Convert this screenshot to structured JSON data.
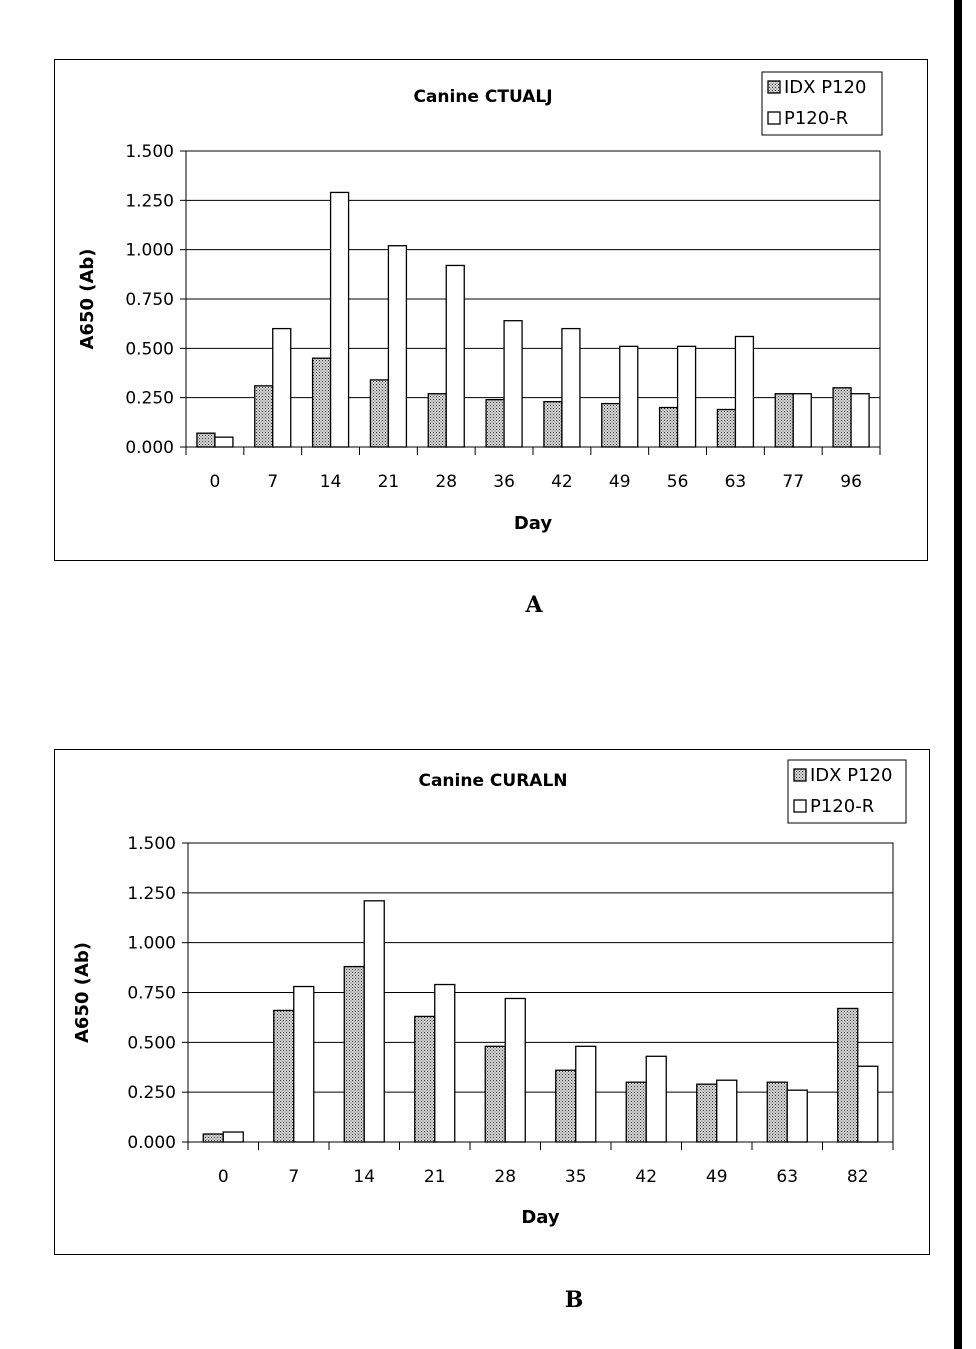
{
  "colors": {
    "stroke": "#000000",
    "filled_series": "#9a9a9a",
    "open_series": "#ffffff"
  },
  "chart_data": [
    {
      "type": "bar",
      "title": "Canine CTUALJ",
      "xlabel": "Day",
      "ylabel": "A650 (Ab)",
      "ylim": [
        0,
        1.5
      ],
      "yticks": [
        "0.000",
        "0.250",
        "0.500",
        "0.750",
        "1.000",
        "1.250",
        "1.500"
      ],
      "grid": true,
      "legend": "top-right",
      "categories": [
        "0",
        "7",
        "14",
        "21",
        "28",
        "36",
        "42",
        "49",
        "56",
        "63",
        "77",
        "96"
      ],
      "series": [
        {
          "name": "IDX P120",
          "values": [
            0.07,
            0.31,
            0.45,
            0.34,
            0.27,
            0.24,
            0.23,
            0.22,
            0.2,
            0.19,
            0.27,
            0.3
          ]
        },
        {
          "name": "P120-R",
          "values": [
            0.05,
            0.6,
            1.29,
            1.02,
            0.92,
            0.64,
            0.6,
            0.51,
            0.51,
            0.56,
            0.27,
            0.27
          ]
        }
      ]
    },
    {
      "type": "bar",
      "title": "Canine CURALN",
      "xlabel": "Day",
      "ylabel": "A650 (Ab)",
      "ylim": [
        0,
        1.5
      ],
      "yticks": [
        "0.000",
        "0.250",
        "0.500",
        "0.750",
        "1.000",
        "1.250",
        "1.500"
      ],
      "grid": true,
      "legend": "top-right",
      "categories": [
        "0",
        "7",
        "14",
        "21",
        "28",
        "35",
        "42",
        "49",
        "63",
        "82"
      ],
      "series": [
        {
          "name": "IDX P120",
          "values": [
            0.04,
            0.66,
            0.88,
            0.63,
            0.48,
            0.36,
            0.3,
            0.29,
            0.3,
            0.67
          ]
        },
        {
          "name": "P120-R",
          "values": [
            0.05,
            0.78,
            1.21,
            0.79,
            0.72,
            0.48,
            0.43,
            0.31,
            0.26,
            0.38
          ]
        }
      ]
    }
  ],
  "panel_labels": [
    "A",
    "B"
  ]
}
